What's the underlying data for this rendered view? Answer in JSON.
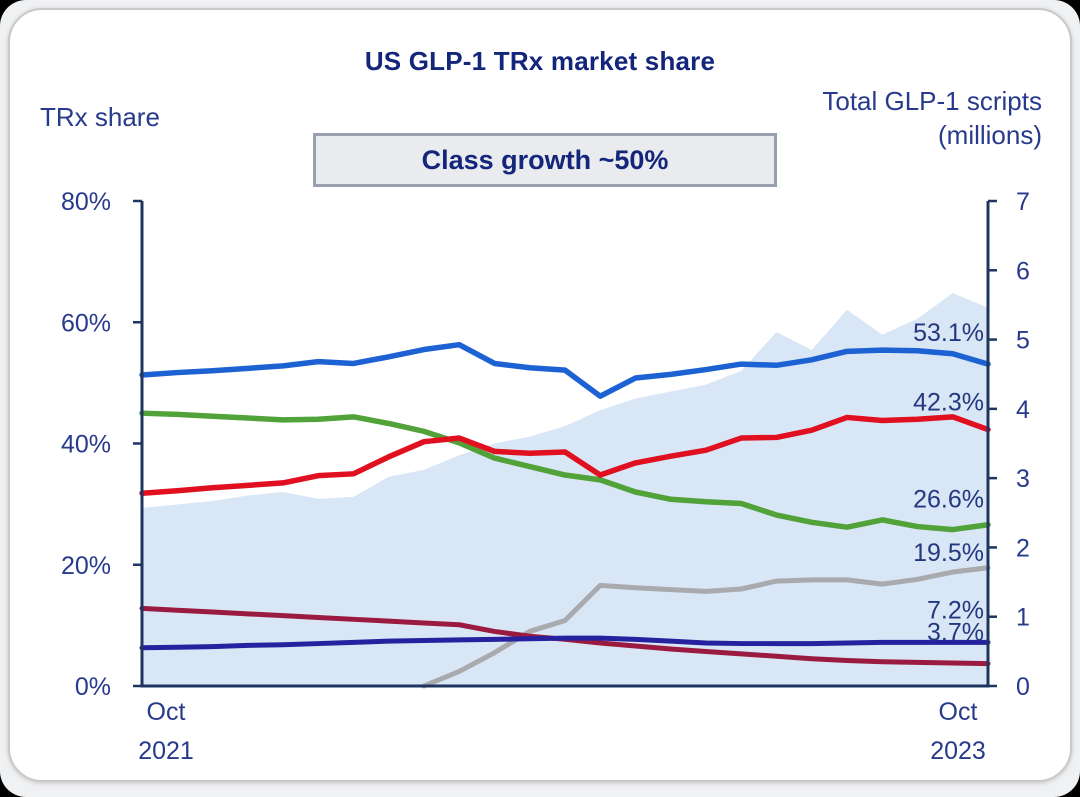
{
  "chart_data": {
    "type": "line",
    "title": "US GLP-1 TRx market share",
    "annotation": "Class growth ~50%",
    "grid": false,
    "legend": "none (series identified by end-value labels only)",
    "x": {
      "start_label_line1": "Oct",
      "start_label_line2": "2021",
      "end_label_line1": "Oct",
      "end_label_line2": "2023",
      "months": [
        "Oct 2021",
        "Nov 2021",
        "Dec 2021",
        "Jan 2022",
        "Feb 2022",
        "Mar 2022",
        "Apr 2022",
        "May 2022",
        "Jun 2022",
        "Jul 2022",
        "Aug 2022",
        "Sep 2022",
        "Oct 2022",
        "Nov 2022",
        "Dec 2022",
        "Jan 2023",
        "Feb 2023",
        "Mar 2023",
        "Apr 2023",
        "May 2023",
        "Jun 2023",
        "Jul 2023",
        "Aug 2023",
        "Sep 2023",
        "Oct 2023"
      ]
    },
    "left_axis": {
      "title": "TRx share",
      "unit": "%",
      "range": [
        0,
        80
      ],
      "tick_values": [
        80,
        60,
        40,
        20,
        0
      ],
      "tick_labels": [
        "80%",
        "60%",
        "40%",
        "20%",
        "0%"
      ]
    },
    "right_axis": {
      "title_line1": "Total GLP-1 scripts",
      "title_line2": "(millions)",
      "range": [
        0,
        7
      ],
      "tick_values": [
        7,
        6,
        5,
        4,
        3,
        2,
        1,
        0
      ]
    },
    "area_series": {
      "key": "total-scripts-area",
      "name": "Total GLP-1 scripts (shaded area, right axis, millions)",
      "color": "#d9e6f5",
      "axis": "right",
      "values": [
        2.57,
        2.62,
        2.67,
        2.75,
        2.8,
        2.7,
        2.73,
        3.02,
        3.12,
        3.33,
        3.5,
        3.6,
        3.75,
        3.98,
        4.15,
        4.25,
        4.35,
        4.55,
        5.11,
        4.85,
        5.43,
        5.07,
        5.3,
        5.67,
        5.46
      ]
    },
    "series": [
      {
        "key": "gray-line",
        "name": "gray series (launched mid-2022)",
        "color": "#a8aaad",
        "width": 5,
        "axis": "left",
        "end_label": "19.5%",
        "values": [
          null,
          null,
          null,
          null,
          null,
          null,
          null,
          null,
          0,
          2.4,
          5.5,
          9.0,
          10.8,
          16.6,
          16.2,
          15.9,
          15.6,
          16.0,
          17.3,
          17.5,
          17.5,
          16.8,
          17.6,
          18.8,
          19.5
        ]
      },
      {
        "key": "green-line",
        "name": "green series (declining)",
        "color": "#52a23a",
        "width": 5.5,
        "axis": "left",
        "end_label": "26.6%",
        "values": [
          45.0,
          44.8,
          44.5,
          44.2,
          43.9,
          44.0,
          44.4,
          43.3,
          42.0,
          40.1,
          37.6,
          36.2,
          34.8,
          34.0,
          32.0,
          30.8,
          30.4,
          30.1,
          28.2,
          27.0,
          26.2,
          27.4,
          26.3,
          25.8,
          26.6
        ]
      },
      {
        "key": "red-line",
        "name": "red series (rising)",
        "color": "#e01020",
        "width": 5.5,
        "axis": "left",
        "end_label": "42.3%",
        "values": [
          31.8,
          32.2,
          32.7,
          33.1,
          33.5,
          34.7,
          35.0,
          37.8,
          40.3,
          40.9,
          38.7,
          38.4,
          38.6,
          34.8,
          36.8,
          37.9,
          38.9,
          40.9,
          41.0,
          42.2,
          44.3,
          43.8,
          44.0,
          44.4,
          42.3
        ]
      },
      {
        "key": "maroon-line",
        "name": "dark-red series (declining)",
        "color": "#9b1b40",
        "width": 5,
        "axis": "left",
        "end_label": "3.7%",
        "values": [
          12.8,
          12.5,
          12.2,
          11.9,
          11.6,
          11.3,
          11.0,
          10.7,
          10.4,
          10.1,
          9.0,
          8.2,
          7.7,
          7.1,
          6.6,
          6.1,
          5.7,
          5.3,
          4.9,
          4.5,
          4.2,
          4.0,
          3.9,
          3.8,
          3.7
        ]
      },
      {
        "key": "navy-line",
        "name": "navy series (flat)",
        "color": "#26219e",
        "width": 5,
        "axis": "left",
        "end_label": "7.2%",
        "values": [
          6.3,
          6.4,
          6.5,
          6.7,
          6.8,
          7.0,
          7.2,
          7.4,
          7.5,
          7.6,
          7.7,
          7.8,
          7.9,
          7.9,
          7.7,
          7.4,
          7.1,
          7.0,
          7.0,
          7.0,
          7.1,
          7.2,
          7.2,
          7.2,
          7.2
        ]
      },
      {
        "key": "blue-line",
        "name": "blue series (leader)",
        "color": "#1d62d2",
        "width": 5.5,
        "axis": "left",
        "end_label": "53.1%",
        "values": [
          51.3,
          51.7,
          52.0,
          52.4,
          52.8,
          53.5,
          53.2,
          54.3,
          55.5,
          56.3,
          53.2,
          52.5,
          52.1,
          47.8,
          50.8,
          51.4,
          52.2,
          53.1,
          52.9,
          53.8,
          55.2,
          55.4,
          55.3,
          54.8,
          53.1
        ]
      }
    ],
    "end_labels_right_to_axis": [
      "53.1%",
      "42.3%",
      "26.6%",
      "19.5%",
      "7.2%",
      "3.7%"
    ]
  },
  "colors": {
    "ink_text": "#283a8c",
    "title_ink": "#14267b",
    "axis_line": "#1e355f",
    "area_fill": "#d9e6f5",
    "annotation_fill": "#e9ebee",
    "annotation_border": "#98a0ac",
    "card_bg": "#ffffff",
    "card_border": "#c9c9c9",
    "page_bg": "#f0f1f2"
  }
}
